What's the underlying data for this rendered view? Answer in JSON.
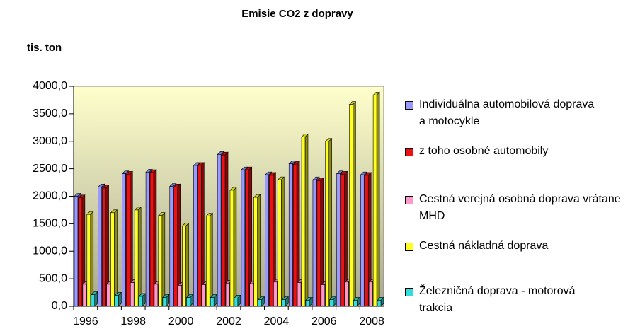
{
  "chart_data": {
    "type": "bar",
    "title": "Emisie CO2 z dopravy",
    "y_axis_label": "tis. ton",
    "categories": [
      "1996",
      null,
      "1998",
      null,
      "2000",
      null,
      "2002",
      null,
      "2004",
      null,
      "2006",
      null,
      "2008"
    ],
    "series": [
      {
        "name": "Individuálna automobilová doprava a motocykle",
        "color": "#9999ff",
        "values": [
          2000,
          2170,
          2410,
          2440,
          2180,
          2560,
          2760,
          2480,
          2390,
          2590,
          2300,
          2410,
          2390
        ]
      },
      {
        "name": "z toho osobné automobily",
        "color": "#ee1111",
        "values": [
          1970,
          2150,
          2400,
          2430,
          2170,
          2560,
          2750,
          2480,
          2380,
          2580,
          2280,
          2400,
          2380
        ]
      },
      {
        "name": "Cestná verejná osobná doprava vrátane MHD",
        "color": "#ff99cc",
        "values": [
          400,
          400,
          430,
          400,
          380,
          390,
          420,
          410,
          440,
          430,
          390,
          440,
          440
        ]
      },
      {
        "name": "Cestná nákladná doprava",
        "color": "#ffff22",
        "values": [
          1670,
          1700,
          1750,
          1650,
          1460,
          1640,
          2110,
          1980,
          2300,
          3080,
          3000,
          3670,
          3840
        ]
      },
      {
        "name": "Železničná doprava - motorová trakcia",
        "color": "#33dddd",
        "values": [
          210,
          200,
          180,
          160,
          160,
          160,
          150,
          120,
          120,
          110,
          120,
          110,
          110
        ]
      }
    ],
    "ylim": [
      0,
      4000
    ],
    "yticks": [
      {
        "value": 0,
        "label": "0,0"
      },
      {
        "value": 500,
        "label": "500,0"
      },
      {
        "value": 1000,
        "label": "1000,0"
      },
      {
        "value": 1500,
        "label": "1500,0"
      },
      {
        "value": 2000,
        "label": "2000,0"
      },
      {
        "value": 2500,
        "label": "2500,0"
      },
      {
        "value": 3000,
        "label": "3000,0"
      },
      {
        "value": 3500,
        "label": "3500,0"
      },
      {
        "value": 4000,
        "label": "4000,0"
      }
    ],
    "legend": "right"
  }
}
